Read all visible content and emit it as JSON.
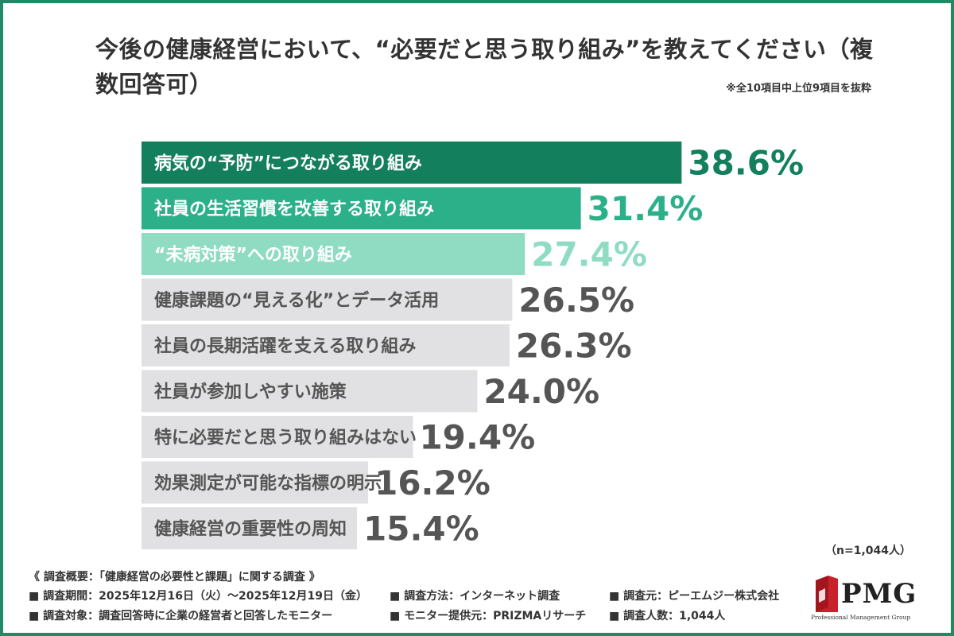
{
  "title": "今後の健康経営において、“必要だと思う取り組み”を教えてください（複数回答可）",
  "note": "※全10項目中上位9項目を抜粋",
  "sample_size": "（n=1,044人）",
  "colors": {
    "frame": "#1f8a63",
    "top1": "#137f5d",
    "top2": "#2bb08a",
    "top3": "#8fdcc3",
    "other": "#e1e0e2",
    "text_dark": "#555555"
  },
  "chart_data": {
    "type": "bar",
    "orientation": "horizontal",
    "categories": [
      "病気の“予防”につながる取り組み",
      "社員の生活習慣を改善する取り組み",
      "“未病対策”への取り組み",
      "健康課題の“見える化”とデータ活用",
      "社員の長期活躍を支える取り組み",
      "社員が参加しやすい施策",
      "特に必要だと思う取り組みはない",
      "効果測定が可能な指標の明示",
      "健康経営の重要性の周知"
    ],
    "values": [
      38.6,
      31.4,
      27.4,
      26.5,
      26.3,
      24.0,
      19.4,
      16.2,
      15.4
    ],
    "value_labels": [
      "38.6%",
      "31.4%",
      "27.4%",
      "26.5%",
      "26.3%",
      "24.0%",
      "19.4%",
      "16.2%",
      "15.4%"
    ],
    "highlight_rank": [
      1,
      2,
      3
    ],
    "axis": "hidden",
    "grid": false,
    "legend": "none"
  },
  "survey": {
    "heading": "《 調査概要：「健康経営の必要性と課題」に関する調査 》",
    "period": "■ 調査期間：2025年12月16日（火）～2025年12月19日（金）",
    "method": "■ 調査方法：インターネット調査",
    "source": "■ 調査元：ピーエムジー株式会社",
    "target": "■ 調査対象：調査回答時に企業の経営者と回答したモニター",
    "provider": "■ モニター提供元：PRIZMAリサーチ",
    "respondents": "■ 調査人数：1,044人"
  },
  "logo": {
    "text": "PMG",
    "subtitle": "Professional Management Group"
  }
}
